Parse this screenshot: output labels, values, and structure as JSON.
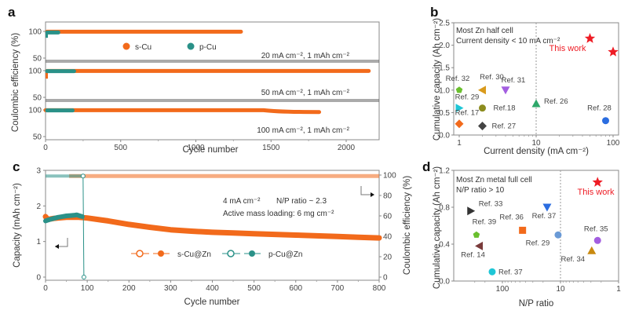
{
  "panel_labels": {
    "a": "a",
    "b": "b",
    "c": "c",
    "d": "d"
  },
  "chart_data": [
    {
      "panel": "a",
      "type": "scatter",
      "xlabel": "Cycle number",
      "ylabel": "Coulombic efficiency (%)",
      "xlim": [
        0,
        2200
      ],
      "xticks": [
        0,
        500,
        1000,
        1500,
        2000
      ],
      "subplots": [
        {
          "condition": "20 mA cm⁻², 1 mAh cm⁻²",
          "yticks": [
            50,
            100
          ],
          "ylim": [
            40,
            110
          ],
          "series": [
            {
              "name": "s-Cu",
              "color": "#f26a1b",
              "x_range": [
                0,
                1300
              ],
              "ce": 99.5
            },
            {
              "name": "p-Cu",
              "color": "#2a9188",
              "x_range": [
                0,
                85
              ],
              "ce_start": 88,
              "ce": 98
            }
          ]
        },
        {
          "condition": "50 mA cm⁻², 1 mAh cm⁻²",
          "yticks": [
            50,
            100
          ],
          "ylim": [
            40,
            110
          ],
          "series": [
            {
              "name": "s-Cu",
              "color": "#f26a1b",
              "x_range": [
                0,
                2150
              ],
              "ce": 99.5,
              "ce_start": 85
            },
            {
              "name": "p-Cu",
              "color": "#2a9188",
              "x_range": [
                0,
                190
              ],
              "ce": 99
            }
          ]
        },
        {
          "condition": "100 mA cm⁻², 1 mAh cm⁻²",
          "yticks": [
            50,
            100
          ],
          "ylim": [
            40,
            110
          ],
          "series": [
            {
              "name": "s-Cu",
              "color": "#f26a1b",
              "x_range": [
                0,
                1820
              ],
              "ce": 99.5,
              "ce_late": 96
            },
            {
              "name": "p-Cu",
              "color": "#2a9188",
              "x_range": [
                0,
                180
              ],
              "ce": 99
            }
          ]
        }
      ],
      "legend": [
        {
          "name": "s-Cu",
          "color": "#f26a1b"
        },
        {
          "name": "p-Cu",
          "color": "#2a9188"
        }
      ],
      "legend_position": "top-center"
    },
    {
      "panel": "b",
      "type": "scatter",
      "xlabel": "Current density (mA cm⁻²)",
      "ylabel": "Cumulative capacity (Ah cm⁻²)",
      "xscale": "log",
      "xlim": [
        0.85,
        115
      ],
      "ylim": [
        0,
        2.5
      ],
      "xticks": [
        1,
        10,
        100
      ],
      "yticks": [
        0.0,
        0.5,
        1.0,
        1.5,
        2.0,
        2.5
      ],
      "ytick_labels": [
        "0.0",
        "0.5",
        "1.0",
        "1.5",
        "2.0",
        "2.5"
      ],
      "annotation": [
        "Most Zn half cell",
        "Current density < 10 mA cm⁻²"
      ],
      "vline_x": 10,
      "this_work_label": "This work",
      "points": [
        {
          "label": "Ref. 32",
          "x": 1,
          "y": 1.0,
          "marker": "pentagon",
          "color": "#6abf2e"
        },
        {
          "label": "Ref. 30",
          "x": 2,
          "y": 1.0,
          "marker": "tri-left",
          "color": "#d99a1c"
        },
        {
          "label": "Ref. 31",
          "x": 4,
          "y": 1.0,
          "marker": "tri-down",
          "color": "#a35ee0"
        },
        {
          "label": "Ref. 29",
          "x": 1,
          "y": 0.6,
          "marker": "tri-right",
          "color": "#1ec6d6"
        },
        {
          "label": "Ref.18",
          "x": 2,
          "y": 0.6,
          "marker": "circle",
          "color": "#8c8c1e"
        },
        {
          "label": "Ref. 26",
          "x": 10,
          "y": 0.7,
          "marker": "tri-up",
          "color": "#2ea86b"
        },
        {
          "label": "Ref. 17",
          "x": 1,
          "y": 0.25,
          "marker": "diamond",
          "color": "#f26a1b"
        },
        {
          "label": "Ref. 27",
          "x": 2,
          "y": 0.2,
          "marker": "diamond",
          "color": "#444444"
        },
        {
          "label": "Ref. 28",
          "x": 80,
          "y": 0.32,
          "marker": "circle",
          "color": "#2b6de0"
        },
        {
          "label": "This work",
          "x": 50,
          "y": 2.15,
          "marker": "star",
          "color": "#ee1c25"
        },
        {
          "label": "This work",
          "x": 100,
          "y": 1.85,
          "marker": "star",
          "color": "#ee1c25"
        }
      ]
    },
    {
      "panel": "c",
      "type": "line",
      "xlabel": "Cycle number",
      "ylabel_left": "Capacity (mAh cm⁻²)",
      "ylabel_right": "Coulombic efficiency (%)",
      "xlim": [
        0,
        800
      ],
      "ylim_left": [
        -0.1,
        3
      ],
      "ylim_right": [
        -3.3,
        100
      ],
      "xticks": [
        0,
        100,
        200,
        300,
        400,
        500,
        600,
        700,
        800
      ],
      "yticks_left": [
        0,
        1,
        2,
        3
      ],
      "yticks_right": [
        0,
        20,
        40,
        60,
        80,
        100
      ],
      "annotation": [
        "4 mA cm⁻²",
        "N/P ratio ~ 2.3",
        "Active mass loading: 6 mg cm⁻²"
      ],
      "series": [
        {
          "name": "s-Cu@Zn",
          "color": "#f26a1b",
          "type": "capacity",
          "x": [
            0,
            5,
            20,
            50,
            80,
            100,
            150,
            200,
            250,
            300,
            350,
            400,
            450,
            500,
            550,
            600,
            650,
            700,
            750,
            800
          ],
          "y": [
            1.7,
            1.62,
            1.65,
            1.68,
            1.68,
            1.66,
            1.58,
            1.48,
            1.4,
            1.33,
            1.29,
            1.26,
            1.24,
            1.22,
            1.2,
            1.18,
            1.16,
            1.14,
            1.12,
            1.1
          ]
        },
        {
          "name": "p-Cu@Zn",
          "color": "#2a9188",
          "type": "capacity",
          "x": [
            0,
            10,
            20,
            30,
            40,
            50,
            60,
            70,
            75,
            80,
            88
          ],
          "y": [
            1.58,
            1.62,
            1.65,
            1.68,
            1.7,
            1.72,
            1.73,
            1.74,
            1.75,
            1.73,
            1.7
          ]
        },
        {
          "name": "s-Cu@Zn",
          "color": "#f26a1b",
          "type": "ce",
          "x": [
            0,
            800
          ],
          "y": [
            99,
            99
          ]
        },
        {
          "name": "p-Cu@Zn",
          "color": "#2a9188",
          "type": "ce",
          "x": [
            0,
            85,
            90,
            92
          ],
          "y": [
            99,
            99,
            99,
            0
          ]
        }
      ],
      "legend": [
        {
          "name": "s-Cu@Zn",
          "color": "#f26a1b"
        },
        {
          "name": "p-Cu@Zn",
          "color": "#2a9188"
        }
      ],
      "legend_position": "bottom-center"
    },
    {
      "panel": "d",
      "type": "scatter",
      "xlabel": "N/P ratio",
      "ylabel": "Cumulative capacity (Ah cm⁻²)",
      "xscale": "log-reversed",
      "xlim": [
        400,
        1
      ],
      "ylim": [
        0,
        1.2
      ],
      "xticks": [
        100,
        10,
        1
      ],
      "yticks": [
        0.0,
        0.4,
        0.8,
        1.2
      ],
      "ytick_labels": [
        "0.0",
        "0.4",
        "0.8",
        "1.2"
      ],
      "annotation": [
        "Most Zn metal full cell",
        "N/P ratio > 10"
      ],
      "vline_x": 10,
      "this_work_label": "This work",
      "points": [
        {
          "label": "Ref. 33",
          "x": 350,
          "y": 0.76,
          "marker": "tri-right",
          "color": "#333333"
        },
        {
          "label": "Ref. 39",
          "x": 280,
          "y": 0.5,
          "marker": "pentagon",
          "color": "#6abf2e"
        },
        {
          "label": "Ref. 14",
          "x": 250,
          "y": 0.38,
          "marker": "tri-left",
          "color": "#7a3b3b"
        },
        {
          "label": "Ref. 37",
          "x": 150,
          "y": 0.1,
          "marker": "circle",
          "color": "#1ec6d6"
        },
        {
          "label": "Ref. 36",
          "x": 45,
          "y": 0.55,
          "marker": "square",
          "color": "#f26a1b"
        },
        {
          "label": "Ref. 37",
          "x": 17,
          "y": 0.8,
          "marker": "tri-down",
          "color": "#2b6de0"
        },
        {
          "label": "Ref. 29",
          "x": 11,
          "y": 0.5,
          "marker": "circle",
          "color": "#6a9ad6"
        },
        {
          "label": "Ref. 35",
          "x": 2.3,
          "y": 0.44,
          "marker": "circle",
          "color": "#a35ee0"
        },
        {
          "label": "Ref. 34",
          "x": 2.9,
          "y": 0.33,
          "marker": "tri-up",
          "color": "#c98a10"
        },
        {
          "label": "This work",
          "x": 2.3,
          "y": 1.07,
          "marker": "star",
          "color": "#ee1c25"
        }
      ]
    }
  ]
}
